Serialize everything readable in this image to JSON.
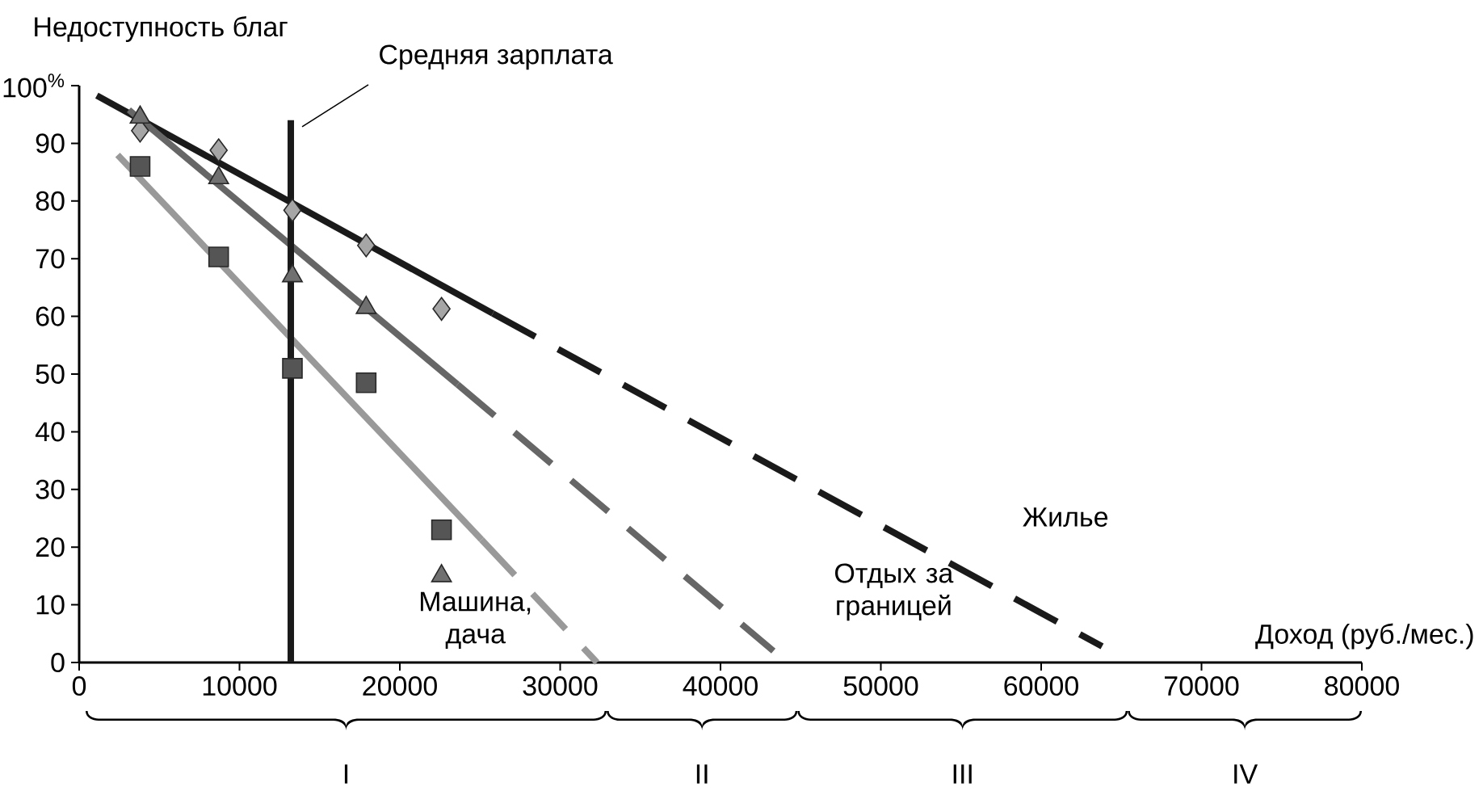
{
  "chart_data": {
    "type": "line",
    "ylabel": "Недоступность благ",
    "xlabel": "Доход (руб./мес.)",
    "xlim": [
      0,
      80000
    ],
    "ylim": [
      0,
      100
    ],
    "xticks": [
      0,
      10000,
      20000,
      30000,
      40000,
      50000,
      60000,
      70000,
      80000
    ],
    "yticks": [
      0,
      10,
      20,
      30,
      40,
      50,
      60,
      70,
      80,
      90,
      {
        "value": 100,
        "label": "100$^{%}$"
      }
    ],
    "series": [
      {
        "color": "#1a1a1a",
        "line_style": "solid",
        "x": [
          1100,
          25800
        ],
        "values": [
          98.3,
          60.5
        ]
      },
      {
        "color": "#1a1a1a",
        "line_style": "dashed",
        "x": [
          25800,
          63800
        ],
        "values": [
          60.5,
          2.8
        ]
      },
      {
        "color": "#666666",
        "line_style": "solid",
        "x": [
          3100,
          23600
        ],
        "values": [
          95.8,
          48.2
        ]
      },
      {
        "color": "#666666",
        "line_style": "dashed",
        "x": [
          23600,
          43300
        ],
        "values": [
          48.2,
          2
        ]
      },
      {
        "color": "#999999",
        "line_style": "solid",
        "x": [
          2400,
          25100
        ],
        "values": [
          88,
          21.3
        ]
      },
      {
        "color": "#999999",
        "line_style": "dashed",
        "x": [
          25100,
          32300
        ],
        "values": [
          21.3,
          0
        ]
      },
      {
        "type": "scatter",
        "marker": "diamond",
        "color": "#a6a6a6",
        "x": [
          3800,
          8700,
          13300,
          17900,
          22600
        ],
        "values": [
          92.2,
          88.8,
          78.4,
          72.3,
          61.3
        ]
      },
      {
        "type": "scatter",
        "marker": "triangle",
        "color": "#707070",
        "x": [
          3800,
          8700,
          13300,
          17900,
          22600
        ],
        "values": [
          94.5,
          84,
          67,
          61.5,
          15
        ]
      },
      {
        "type": "scatter",
        "marker": "square",
        "color": "#555555",
        "x": [
          3800,
          8700,
          13300,
          17900,
          22600
        ],
        "values": [
          86,
          70.3,
          51,
          48.5,
          23
        ]
      }
    ],
    "ref_lines": [
      {
        "axis": "x",
        "value": 13200,
        "label": "Средняя зарплата",
        "color": "#1a1a1a"
      }
    ],
    "annotations": [
      "Машина, дача",
      "Отдых за границей",
      "Жилье",
      "I",
      "II",
      "III",
      "IV"
    ]
  }
}
